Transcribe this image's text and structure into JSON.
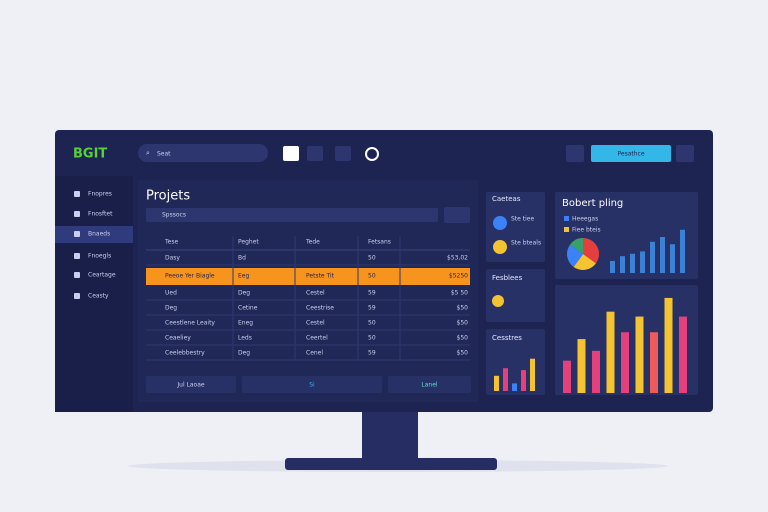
{
  "topbar": {
    "logo": "BGIT",
    "search": "Seat",
    "button": "Pesathce"
  },
  "sidebar": [
    "Fnopres",
    "Fnosftet",
    "Bnaeds",
    "Fnoegls",
    "Ceartage",
    "Ceasty"
  ],
  "projects": {
    "title": "Projets",
    "search": "Spssocs",
    "columns": [
      "Tese",
      "Peghet",
      "Tede",
      "Fetsans"
    ],
    "rows": [
      [
        "Dasy",
        "Bd",
        null,
        "50",
        "$53,02"
      ],
      [
        "Peeoe Yer Biagle",
        "Eeg",
        "Petste Tit",
        "50",
        "$5250"
      ],
      [
        "Ued",
        "Deg",
        "Cestel",
        "59",
        "$5 50"
      ],
      [
        "Deg",
        "Cetine",
        "Ceestrise",
        "59",
        "$50"
      ],
      [
        "Ceestlene Leaity",
        "Eneg",
        "Cestel",
        "50",
        "$50"
      ],
      [
        "Ceaeliey",
        "Leds",
        "Ceertel",
        "50",
        "$50"
      ],
      [
        "Ceelebbestry",
        "Deg",
        "Cenel",
        "59",
        "$50"
      ]
    ],
    "buttons": [
      "Jul Laoae",
      "Si",
      "Lanel"
    ]
  },
  "cards": {
    "categories": {
      "title": "Caeteas",
      "items": [
        "Ste tiee",
        "Ste bteals"
      ]
    },
    "features": {
      "title": "Fesblees"
    },
    "costs": {
      "title": "Cesstres",
      "values": [
        40,
        60,
        20,
        55,
        85
      ],
      "colors": [
        "#f4c331",
        "#e4407b",
        "#3b82f6",
        "#e4407b",
        "#f4c331"
      ]
    },
    "budget": {
      "title": "Bobert pling",
      "legend": [
        "Heeegas",
        "Fiee bteis"
      ],
      "pie": {
        "values": [
          35,
          25,
          25,
          15
        ],
        "colors": [
          "#e53e3e",
          "#f6c431",
          "#3b82f6",
          "#38a169"
        ]
      },
      "values": [
        25,
        35,
        40,
        45,
        65,
        75,
        60,
        90
      ],
      "color": "#3b82d6"
    },
    "trend": {
      "values": [
        33,
        55,
        43,
        83,
        62,
        78,
        62,
        97,
        78
      ],
      "colors": [
        "#e4407b",
        "#f4c331",
        "#e4407b",
        "#f4c331",
        "#e4407b",
        "#f4c331",
        "#ee5a5a",
        "#f4c331",
        "#e4407b"
      ]
    }
  }
}
